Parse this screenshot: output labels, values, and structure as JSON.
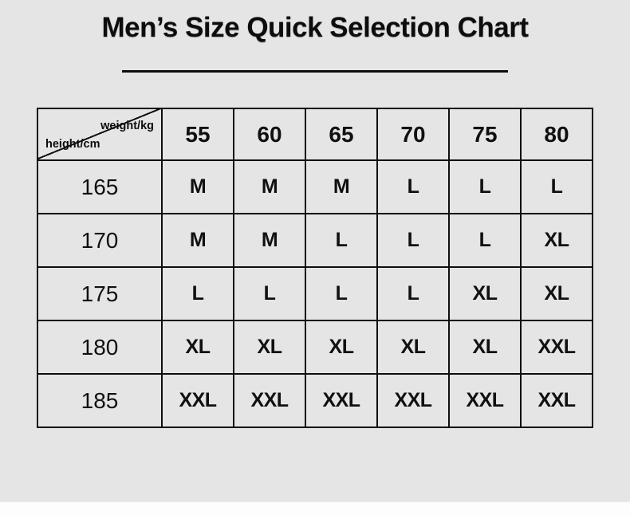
{
  "title": "Men’s Size Quick Selection Chart",
  "colors": {
    "background": "#e5e5e5",
    "table_border": "#0f0f0f",
    "text": "#0d0d0d",
    "footer_strip": "#fdfdfd"
  },
  "chart_data": {
    "type": "table",
    "title": "Men’s Size Quick Selection Chart",
    "corner_top_right_label": "weight/kg",
    "corner_bottom_left_label": "height/cm",
    "x_axis_label": "weight/kg",
    "y_axis_label": "height/cm",
    "columns": [
      "55",
      "60",
      "65",
      "70",
      "75",
      "80"
    ],
    "rows": [
      {
        "height": "165",
        "sizes": [
          "M",
          "M",
          "M",
          "L",
          "L",
          "L"
        ]
      },
      {
        "height": "170",
        "sizes": [
          "M",
          "M",
          "L",
          "L",
          "L",
          "XL"
        ]
      },
      {
        "height": "175",
        "sizes": [
          "L",
          "L",
          "L",
          "L",
          "XL",
          "XL"
        ]
      },
      {
        "height": "180",
        "sizes": [
          "XL",
          "XL",
          "XL",
          "XL",
          "XL",
          "XXL"
        ]
      },
      {
        "height": "185",
        "sizes": [
          "XXL",
          "XXL",
          "XXL",
          "XXL",
          "XXL",
          "XXL"
        ]
      }
    ]
  }
}
